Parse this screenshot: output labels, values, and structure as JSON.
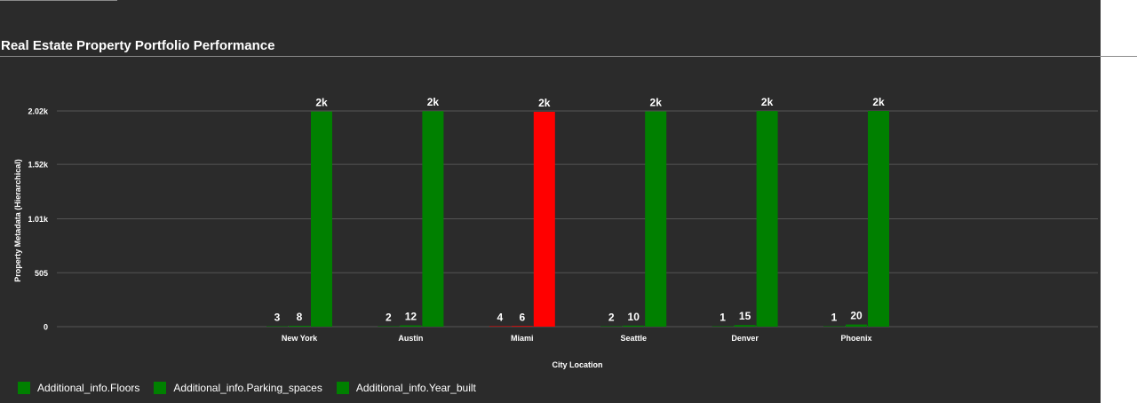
{
  "chart_data": {
    "type": "bar",
    "title": "Real Estate Property Portfolio Performance",
    "xlabel": "City Location",
    "ylabel": "Property Metadata (Hierarchical)",
    "categories": [
      "New York",
      "Austin",
      "Miami",
      "Seattle",
      "Denver",
      "Phoenix"
    ],
    "series": [
      {
        "name": "Additional_info.Floors",
        "values": [
          3,
          2,
          4,
          2,
          1,
          1
        ],
        "value_labels": [
          "3",
          "2",
          "4",
          "2",
          "1",
          "1"
        ]
      },
      {
        "name": "Additional_info.Parking_spaces",
        "values": [
          8,
          12,
          6,
          10,
          15,
          20
        ],
        "value_labels": [
          "8",
          "12",
          "6",
          "10",
          "15",
          "20"
        ]
      },
      {
        "name": "Additional_info.Year_built",
        "values": [
          2015,
          2018,
          2012,
          2016,
          2019,
          2020
        ],
        "value_labels": [
          "2k",
          "2k",
          "2k",
          "2k",
          "2k",
          "2k"
        ]
      }
    ],
    "highlight_category": "Miami",
    "ylim": [
      0,
      2020
    ],
    "yticks": [
      0,
      505,
      1010,
      1520,
      2020
    ],
    "ytick_labels": [
      "0",
      "505",
      "1.01k",
      "1.52k",
      "2.02k"
    ],
    "grid": true,
    "legend": "bottom-left",
    "colors": {
      "bar": "#008000",
      "highlight": "#ff0000",
      "background": "#2b2b2b",
      "gridline": "#555555",
      "text": "#ffffff"
    }
  }
}
